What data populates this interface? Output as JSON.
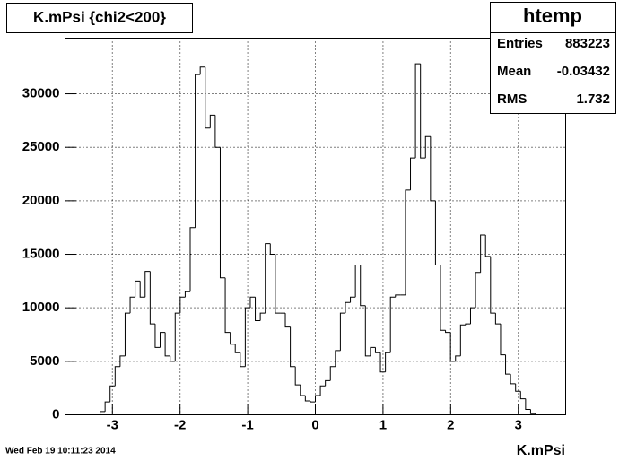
{
  "chart_data": {
    "type": "histogram",
    "title": "K.mPsi {chi2<200}",
    "x_label": "K.mPsi",
    "timestamp": "Wed Feb 19 10:11:23 2014",
    "stats": {
      "name": "htemp",
      "rows": [
        [
          "Entries",
          "883223"
        ],
        [
          "Mean",
          "-0.03432"
        ],
        [
          "RMS",
          "1.732"
        ]
      ]
    },
    "bins": [
      -3.182,
      -3.108,
      -3.034,
      -2.96,
      -2.886,
      -2.812,
      -2.738,
      -2.664,
      -2.59,
      -2.516,
      -2.442,
      -2.368,
      -2.294,
      -2.22,
      -2.146,
      -2.072,
      -1.998,
      -1.924,
      -1.85,
      -1.776,
      -1.702,
      -1.628,
      -1.554,
      -1.48,
      -1.406,
      -1.332,
      -1.258,
      -1.184,
      -1.11,
      -1.036,
      -0.962,
      -0.888,
      -0.814,
      -0.74,
      -0.666,
      -0.592,
      -0.518,
      -0.444,
      -0.37,
      -0.296,
      -0.222,
      -0.148,
      -0.074,
      0,
      0.074,
      0.148,
      0.222,
      0.296,
      0.37,
      0.444,
      0.518,
      0.592,
      0.666,
      0.74,
      0.814,
      0.888,
      0.962,
      1.036,
      1.11,
      1.184,
      1.258,
      1.332,
      1.406,
      1.48,
      1.554,
      1.628,
      1.702,
      1.776,
      1.85,
      1.924,
      1.998,
      2.072,
      2.146,
      2.22,
      2.294,
      2.368,
      2.442,
      2.516,
      2.59,
      2.664,
      2.738,
      2.812,
      2.886,
      2.96,
      3.034,
      3.108,
      3.182,
      3.256
    ],
    "values": [
      300,
      1200,
      2700,
      4500,
      5500,
      9500,
      11000,
      12500,
      11000,
      13400,
      8500,
      6300,
      7700,
      5500,
      5000,
      9500,
      11000,
      11500,
      17500,
      31800,
      32500,
      26800,
      28000,
      25000,
      12800,
      7700,
      6600,
      5800,
      4500,
      10000,
      11000,
      8800,
      9500,
      16000,
      15000,
      9500,
      9500,
      8200,
      4500,
      2800,
      1800,
      1300,
      1200,
      1800,
      2700,
      3200,
      4500,
      6000,
      9500,
      10500,
      11000,
      14000,
      10200,
      5500,
      6300,
      5800,
      4000,
      5800,
      11000,
      11200,
      11200,
      21000,
      24000,
      32800,
      24000,
      26000,
      20000,
      14000,
      7900,
      7700,
      5000,
      5500,
      8400,
      8500,
      10000,
      13300,
      16800,
      14800,
      9500,
      8500,
      5600,
      3800,
      2900,
      2200,
      1500,
      500,
      100
    ],
    "color": "#000000",
    "xlim": [
      -3.7,
      3.7
    ],
    "xticks": [
      -3,
      -2,
      -1,
      0,
      1,
      2,
      3
    ],
    "ylim": [
      0,
      35200
    ],
    "yticks": [
      0,
      5000,
      10000,
      15000,
      20000,
      25000,
      30000
    ],
    "grid": true
  }
}
